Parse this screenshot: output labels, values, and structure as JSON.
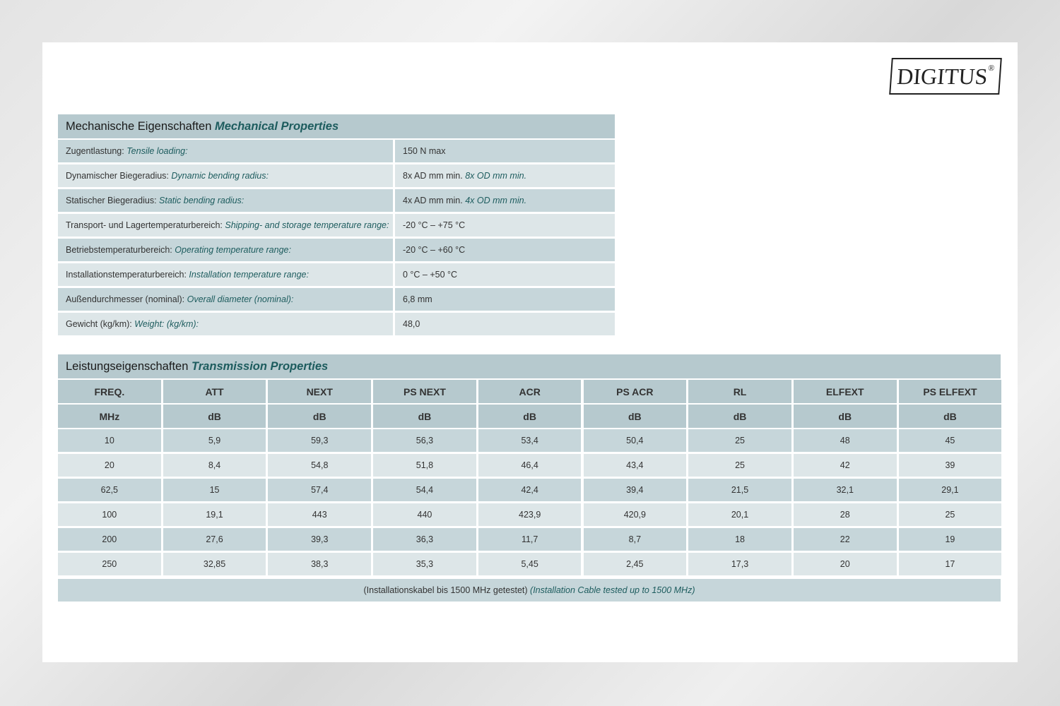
{
  "logo": {
    "text": "DIGITUS",
    "mark": "®"
  },
  "mechanical": {
    "title_de": "Mechanische Eigenschaften",
    "title_en": "Mechanical Properties",
    "rows": [
      {
        "label_de": "Zugentlastung:",
        "label_en": "Tensile loading:",
        "value": "150 N max"
      },
      {
        "label_de": "Dynamischer Biegeradius:",
        "label_en": "Dynamic bending radius:",
        "value": "8x AD mm min.",
        "value_en": "8x OD mm min."
      },
      {
        "label_de": "Statischer Biegeradius:",
        "label_en": "Static bending radius:",
        "value": "4x AD mm min.",
        "value_en": "4x OD mm min."
      },
      {
        "label_de": "Transport- und Lagertemperaturbereich:",
        "label_en": "Shipping- and storage temperature range:",
        "value": "-20 °C – +75 °C"
      },
      {
        "label_de": "Betriebstemperaturbereich:",
        "label_en": "Operating temperature range:",
        "value": "-20 °C – +60 °C"
      },
      {
        "label_de": "Installationstemperaturbereich:",
        "label_en": "Installation temperature range:",
        "value": "0 °C – +50 °C"
      },
      {
        "label_de": "Außendurchmesser (nominal):",
        "label_en": "Overall diameter (nominal):",
        "value": "6,8 mm"
      },
      {
        "label_de": "Gewicht (kg/km):",
        "label_en": "Weight: (kg/km):",
        "value": "48,0"
      }
    ]
  },
  "transmission": {
    "title_de": "Leistungseigenschaften",
    "title_en": "Transmission Properties",
    "headers": [
      "FREQ.",
      "ATT",
      "NEXT",
      "PS NEXT",
      "ACR",
      "PS ACR",
      "RL",
      "ELFEXT",
      "PS ELFEXT"
    ],
    "units": [
      "MHz",
      "dB",
      "dB",
      "dB",
      "dB",
      "dB",
      "dB",
      "dB",
      "dB"
    ],
    "rows": [
      [
        "10",
        "5,9",
        "59,3",
        "56,3",
        "53,4",
        "50,4",
        "25",
        "48",
        "45"
      ],
      [
        "20",
        "8,4",
        "54,8",
        "51,8",
        "46,4",
        "43,4",
        "25",
        "42",
        "39"
      ],
      [
        "62,5",
        "15",
        "57,4",
        "54,4",
        "42,4",
        "39,4",
        "21,5",
        "32,1",
        "29,1"
      ],
      [
        "100",
        "19,1",
        "443",
        "440",
        "423,9",
        "420,9",
        "20,1",
        "28",
        "25"
      ],
      [
        "200",
        "27,6",
        "39,3",
        "36,3",
        "11,7",
        "8,7",
        "18",
        "22",
        "19"
      ],
      [
        "250",
        "32,85",
        "38,3",
        "35,3",
        "5,45",
        "2,45",
        "17,3",
        "20",
        "17"
      ]
    ],
    "footnote_de": "(Installationskabel bis 1500 MHz getestet)",
    "footnote_en": "(Installation Cable tested up to 1500 MHz)"
  }
}
